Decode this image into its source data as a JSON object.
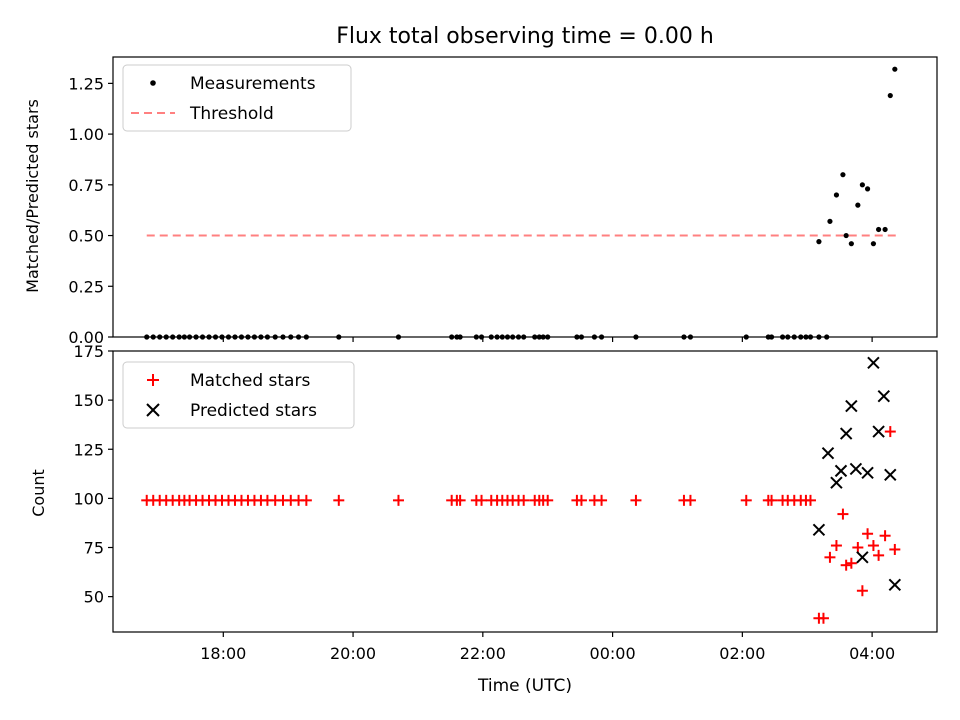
{
  "chart_data": [
    {
      "type": "scatter",
      "panel": "top",
      "title": "Flux total observing time = 0.00 h",
      "xlabel": "",
      "ylabel": "Matched/Predicted stars",
      "xlim": [
        16.3,
        29.0
      ],
      "ylim": [
        0.0,
        1.38
      ],
      "yticks": [
        0.0,
        0.25,
        0.5,
        0.75,
        1.0,
        1.25
      ],
      "ytick_labels": [
        "0.00",
        "0.25",
        "0.50",
        "0.75",
        "1.00",
        "1.25"
      ],
      "legend_position": "top-left",
      "series": [
        {
          "name": "Measurements",
          "marker": "dot",
          "color": "#000000",
          "x": [
            16.82,
            16.92,
            17.02,
            17.12,
            17.22,
            17.32,
            17.4,
            17.48,
            17.58,
            17.68,
            17.78,
            17.88,
            17.98,
            18.08,
            18.18,
            18.28,
            18.38,
            18.48,
            18.58,
            18.68,
            18.8,
            18.92,
            19.04,
            19.16,
            19.28,
            19.78,
            20.7,
            21.52,
            21.6,
            21.65,
            21.9,
            21.98,
            22.13,
            22.22,
            22.3,
            22.38,
            22.46,
            22.55,
            22.63,
            22.8,
            22.87,
            22.93,
            23.0,
            23.45,
            23.52,
            23.72,
            23.83,
            24.36,
            25.1,
            25.2,
            26.06,
            26.4,
            26.45,
            26.62,
            26.7,
            26.8,
            26.9,
            26.98,
            27.05,
            27.18,
            27.3
          ],
          "y": [
            0,
            0,
            0,
            0,
            0,
            0,
            0,
            0,
            0,
            0,
            0,
            0,
            0,
            0,
            0,
            0,
            0,
            0,
            0,
            0,
            0,
            0,
            0,
            0,
            0,
            0,
            0,
            0,
            0,
            0,
            0,
            0,
            0,
            0,
            0,
            0,
            0,
            0,
            0,
            0,
            0,
            0,
            0,
            0,
            0,
            0,
            0,
            0,
            0,
            0,
            0,
            0,
            0,
            0,
            0,
            0,
            0,
            0,
            0,
            0,
            0
          ]
        },
        {
          "name": "Measurements",
          "marker": "dot",
          "color": "#000000",
          "x": [
            27.18,
            27.35,
            27.45,
            27.55,
            27.6,
            27.68,
            27.78,
            27.85,
            27.93,
            28.02,
            28.1,
            28.2,
            28.28,
            28.35
          ],
          "y": [
            0.47,
            0.57,
            0.7,
            0.8,
            0.5,
            0.46,
            0.65,
            0.75,
            0.73,
            0.46,
            0.53,
            0.53,
            1.19,
            1.32
          ]
        }
      ],
      "threshold": {
        "name": "Threshold",
        "value": 0.5,
        "x_range": [
          16.82,
          28.38
        ],
        "color": "#ff8080"
      }
    },
    {
      "type": "scatter",
      "panel": "bottom",
      "title": "",
      "xlabel": "Time (UTC)",
      "ylabel": "Count",
      "xlim": [
        16.3,
        29.0
      ],
      "ylim": [
        32,
        175
      ],
      "xticks": [
        18,
        20,
        22,
        24,
        26,
        28
      ],
      "xtick_labels": [
        "18:00",
        "20:00",
        "22:00",
        "00:00",
        "02:00",
        "04:00"
      ],
      "yticks": [
        50,
        75,
        100,
        125,
        150,
        175
      ],
      "ytick_labels": [
        "50",
        "75",
        "100",
        "125",
        "150",
        "175"
      ],
      "legend_position": "top-left",
      "series": [
        {
          "name": "Matched stars",
          "marker": "plus",
          "color": "#ff0000",
          "x": [
            16.82,
            16.92,
            17.02,
            17.12,
            17.22,
            17.32,
            17.4,
            17.48,
            17.58,
            17.68,
            17.78,
            17.88,
            17.98,
            18.08,
            18.18,
            18.28,
            18.38,
            18.48,
            18.58,
            18.68,
            18.8,
            18.92,
            19.04,
            19.16,
            19.28,
            19.78,
            20.7,
            21.52,
            21.6,
            21.65,
            21.9,
            21.98,
            22.13,
            22.22,
            22.3,
            22.38,
            22.46,
            22.55,
            22.63,
            22.8,
            22.87,
            22.93,
            23.0,
            23.45,
            23.52,
            23.72,
            23.83,
            24.36,
            25.1,
            25.2,
            26.06,
            26.4,
            26.45,
            26.62,
            26.7,
            26.8,
            26.9,
            26.98,
            27.05,
            27.18,
            27.25,
            27.35,
            27.45,
            27.55,
            27.6,
            27.68,
            27.78,
            27.85,
            27.93,
            28.02,
            28.1,
            28.2,
            28.28,
            28.35
          ],
          "y": [
            99,
            99,
            99,
            99,
            99,
            99,
            99,
            99,
            99,
            99,
            99,
            99,
            99,
            99,
            99,
            99,
            99,
            99,
            99,
            99,
            99,
            99,
            99,
            99,
            99,
            99,
            99,
            99,
            99,
            99,
            99,
            99,
            99,
            99,
            99,
            99,
            99,
            99,
            99,
            99,
            99,
            99,
            99,
            99,
            99,
            99,
            99,
            99,
            99,
            99,
            99,
            99,
            99,
            99,
            99,
            99,
            99,
            99,
            99,
            39,
            39,
            70,
            76,
            92,
            66,
            67,
            75,
            53,
            82,
            76,
            71,
            81,
            134,
            74
          ]
        },
        {
          "name": "Predicted stars",
          "marker": "x",
          "color": "#000000",
          "x": [
            27.18,
            27.32,
            27.45,
            27.52,
            27.6,
            27.68,
            27.75,
            27.85,
            27.93,
            28.02,
            28.1,
            28.18,
            28.28,
            28.35
          ],
          "y": [
            84,
            123,
            108,
            114,
            133,
            147,
            115,
            70,
            113,
            169,
            134,
            152,
            112,
            56
          ]
        }
      ]
    }
  ]
}
